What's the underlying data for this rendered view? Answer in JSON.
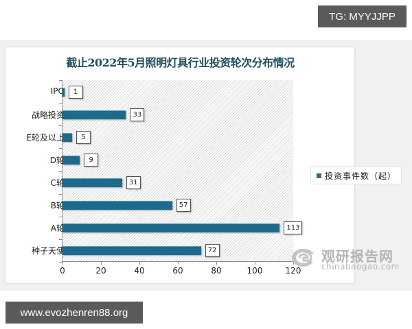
{
  "overlays": {
    "tg_badge": "TG: MYYJJPP",
    "site_badge": "www.evozhenren88.org"
  },
  "chart_data": {
    "type": "bar",
    "orientation": "horizontal",
    "title": "截止2022年5月照明灯具行业投资轮次分布情况",
    "xlabel": "",
    "ylabel": "",
    "categories": [
      "IPO",
      "战略投资",
      "E轮及以上",
      "D轮",
      "C轮",
      "B轮",
      "A轮",
      "种子天使"
    ],
    "values": [
      1,
      33,
      5,
      9,
      31,
      57,
      113,
      72
    ],
    "series": [
      {
        "name": "投资事件数（起）",
        "values": [
          1,
          33,
          5,
          9,
          31,
          57,
          113,
          72
        ],
        "color": "#1c6b8c"
      }
    ],
    "xlim": [
      0,
      120
    ],
    "xticks": [
      "0",
      "20",
      "40",
      "60",
      "80",
      "100",
      "120"
    ],
    "legend_position": "right",
    "grid": false,
    "data_labels": true
  },
  "legend": {
    "label": "投资事件数（起）"
  },
  "watermark": {
    "cn": "观研报告网",
    "en": "chinabaogao.com"
  }
}
